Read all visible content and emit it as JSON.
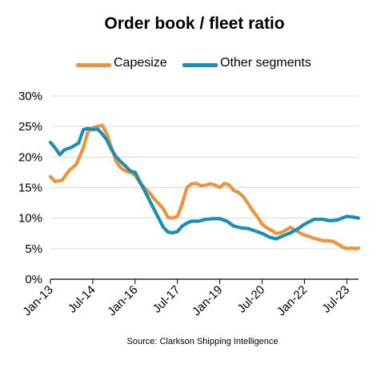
{
  "chart_data": {
    "type": "line",
    "title": "Order book / fleet ratio",
    "source": "Source: Clarkson Shipping Intelligence",
    "xlabel": "",
    "ylabel": "",
    "x_start": "2013-01",
    "x_end": "2023-12",
    "x_ticks": [
      "Jan-13",
      "Jul-14",
      "Jan-16",
      "Jul-17",
      "Jan-19",
      "Jul-20",
      "Jan-22",
      "Jul-23"
    ],
    "y_ticks": [
      "0%",
      "5%",
      "10%",
      "15%",
      "20%",
      "25%",
      "30%"
    ],
    "ylim": [
      0,
      30
    ],
    "y_unit": "%",
    "grid": "horizontal",
    "legend_position": "top",
    "series": [
      {
        "name": "Capesize",
        "color": "#F0923A",
        "points": [
          [
            "2013-01",
            16.8
          ],
          [
            "2013-03",
            16.0
          ],
          [
            "2013-06",
            16.2
          ],
          [
            "2013-09",
            17.8
          ],
          [
            "2013-12",
            18.8
          ],
          [
            "2014-03",
            21.5
          ],
          [
            "2014-05",
            24.2
          ],
          [
            "2014-07",
            24.8
          ],
          [
            "2014-09",
            25.0
          ],
          [
            "2014-11",
            25.2
          ],
          [
            "2015-01",
            23.8
          ],
          [
            "2015-03",
            21.5
          ],
          [
            "2015-05",
            19.2
          ],
          [
            "2015-07",
            18.2
          ],
          [
            "2015-09",
            17.7
          ],
          [
            "2015-11",
            17.5
          ],
          [
            "2016-01",
            17.0
          ],
          [
            "2016-03",
            15.8
          ],
          [
            "2016-05",
            15.0
          ],
          [
            "2016-07",
            14.2
          ],
          [
            "2016-09",
            13.2
          ],
          [
            "2016-11",
            12.4
          ],
          [
            "2017-01",
            11.5
          ],
          [
            "2017-03",
            10.1
          ],
          [
            "2017-05",
            10.0
          ],
          [
            "2017-07",
            10.3
          ],
          [
            "2017-09",
            12.3
          ],
          [
            "2017-11",
            15.0
          ],
          [
            "2018-01",
            15.6
          ],
          [
            "2018-03",
            15.7
          ],
          [
            "2018-05",
            15.3
          ],
          [
            "2018-07",
            15.4
          ],
          [
            "2018-09",
            15.6
          ],
          [
            "2018-11",
            15.4
          ],
          [
            "2019-01",
            15.0
          ],
          [
            "2019-03",
            15.7
          ],
          [
            "2019-05",
            15.4
          ],
          [
            "2019-07",
            14.5
          ],
          [
            "2019-09",
            14.2
          ],
          [
            "2019-11",
            13.5
          ],
          [
            "2020-01",
            12.4
          ],
          [
            "2020-03",
            11.2
          ],
          [
            "2020-05",
            10.2
          ],
          [
            "2020-07",
            9.0
          ],
          [
            "2020-09",
            8.4
          ],
          [
            "2020-11",
            8.0
          ],
          [
            "2021-01",
            7.5
          ],
          [
            "2021-03",
            7.6
          ],
          [
            "2021-05",
            8.0
          ],
          [
            "2021-07",
            8.5
          ],
          [
            "2021-09",
            8.0
          ],
          [
            "2021-11",
            7.6
          ],
          [
            "2022-01",
            7.2
          ],
          [
            "2022-03",
            7.0
          ],
          [
            "2022-05",
            6.7
          ],
          [
            "2022-07",
            6.5
          ],
          [
            "2022-09",
            6.3
          ],
          [
            "2022-11",
            6.3
          ],
          [
            "2023-01",
            6.2
          ],
          [
            "2023-03",
            5.8
          ],
          [
            "2023-05",
            5.3
          ],
          [
            "2023-07",
            5.0
          ],
          [
            "2023-09",
            5.1
          ],
          [
            "2023-11",
            5.0
          ],
          [
            "2023-12",
            5.1
          ]
        ]
      },
      {
        "name": "Other segments",
        "color": "#1A8FB5",
        "points": [
          [
            "2013-01",
            22.4
          ],
          [
            "2013-03",
            21.5
          ],
          [
            "2013-05",
            20.4
          ],
          [
            "2013-07",
            21.2
          ],
          [
            "2013-10",
            21.6
          ],
          [
            "2014-01",
            22.3
          ],
          [
            "2014-03",
            24.5
          ],
          [
            "2014-05",
            24.7
          ],
          [
            "2014-07",
            24.5
          ],
          [
            "2014-09",
            24.6
          ],
          [
            "2014-11",
            23.8
          ],
          [
            "2015-01",
            22.8
          ],
          [
            "2015-03",
            21.2
          ],
          [
            "2015-05",
            20.0
          ],
          [
            "2015-07",
            19.2
          ],
          [
            "2015-09",
            18.5
          ],
          [
            "2015-11",
            17.7
          ],
          [
            "2016-01",
            17.5
          ],
          [
            "2016-03",
            16.0
          ],
          [
            "2016-05",
            14.5
          ],
          [
            "2016-07",
            13.0
          ],
          [
            "2016-09",
            11.5
          ],
          [
            "2016-11",
            10.0
          ],
          [
            "2017-01",
            8.5
          ],
          [
            "2017-03",
            7.7
          ],
          [
            "2017-05",
            7.6
          ],
          [
            "2017-07",
            7.8
          ],
          [
            "2017-09",
            8.7
          ],
          [
            "2017-11",
            9.2
          ],
          [
            "2018-01",
            9.5
          ],
          [
            "2018-04",
            9.5
          ],
          [
            "2018-07",
            9.8
          ],
          [
            "2018-10",
            9.9
          ],
          [
            "2019-01",
            9.9
          ],
          [
            "2019-04",
            9.5
          ],
          [
            "2019-07",
            8.7
          ],
          [
            "2019-10",
            8.4
          ],
          [
            "2020-01",
            8.3
          ],
          [
            "2020-04",
            7.9
          ],
          [
            "2020-07",
            7.5
          ],
          [
            "2020-10",
            6.9
          ],
          [
            "2021-01",
            6.6
          ],
          [
            "2021-04",
            7.1
          ],
          [
            "2021-07",
            7.6
          ],
          [
            "2021-10",
            8.2
          ],
          [
            "2022-01",
            9.0
          ],
          [
            "2022-03",
            9.4
          ],
          [
            "2022-05",
            9.8
          ],
          [
            "2022-07",
            9.8
          ],
          [
            "2022-09",
            9.8
          ],
          [
            "2022-11",
            9.6
          ],
          [
            "2023-01",
            9.6
          ],
          [
            "2023-03",
            9.7
          ],
          [
            "2023-05",
            10.0
          ],
          [
            "2023-07",
            10.3
          ],
          [
            "2023-09",
            10.2
          ],
          [
            "2023-12",
            10.0
          ]
        ]
      }
    ]
  }
}
